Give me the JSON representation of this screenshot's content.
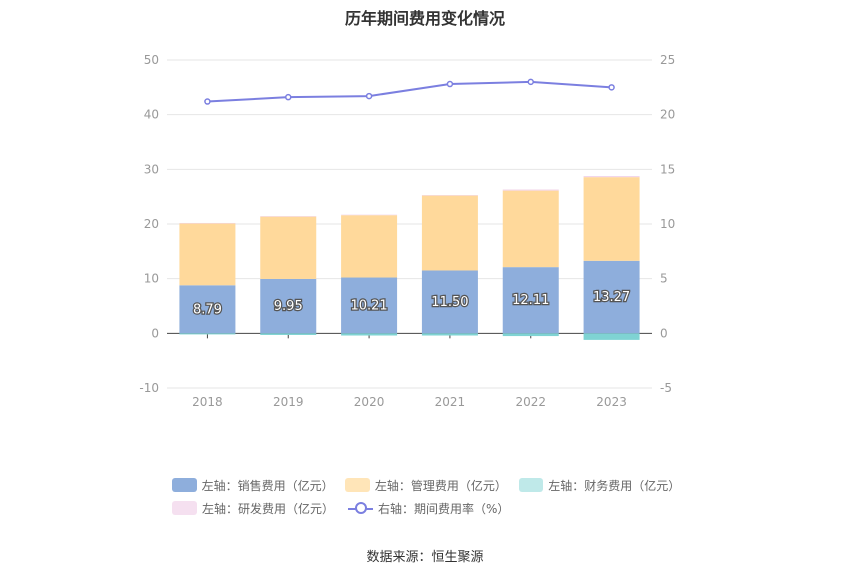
{
  "title": "历年期间费用变化情况",
  "source": "数据来源：恒生聚源",
  "chart_data": {
    "type": "bar",
    "stacked": true,
    "categories": [
      "2018",
      "2019",
      "2020",
      "2021",
      "2022",
      "2023"
    ],
    "left_axis": {
      "ylim": [
        -10,
        50
      ],
      "ticks": [
        -10,
        0,
        10,
        20,
        30,
        40,
        50
      ]
    },
    "right_axis": {
      "ylim": [
        -5,
        25
      ],
      "ticks": [
        -5,
        0,
        5,
        10,
        15,
        20,
        25
      ]
    },
    "series": [
      {
        "name": "左轴：销售费用（亿元）",
        "axis": "left",
        "kind": "bar",
        "color": "#8eaedc",
        "values": [
          8.79,
          9.95,
          10.21,
          11.5,
          12.11,
          13.27
        ],
        "labels": [
          "8.79",
          "9.95",
          "10.21",
          "11.50",
          "12.11",
          "13.27"
        ]
      },
      {
        "name": "左轴：管理费用（亿元）",
        "axis": "left",
        "kind": "bar",
        "color": "#ffd99b",
        "values": [
          11.3,
          11.4,
          11.4,
          13.7,
          14.0,
          15.3
        ]
      },
      {
        "name": "左轴：财务费用（亿元）",
        "axis": "left",
        "kind": "bar",
        "color": "#7fd3d3",
        "values": [
          -0.2,
          -0.3,
          -0.4,
          -0.4,
          -0.5,
          -1.2
        ]
      },
      {
        "name": "左轴：研发费用（亿元）",
        "axis": "left",
        "kind": "bar",
        "color": "#f2d4ea",
        "values": [
          0.1,
          0.1,
          0.1,
          0.1,
          0.2,
          0.2
        ]
      },
      {
        "name": "右轴：期间费用率（%）",
        "axis": "right",
        "kind": "line",
        "color": "#7b7fe0",
        "values": [
          21.2,
          21.6,
          21.7,
          22.8,
          23.0,
          22.5
        ]
      }
    ],
    "legend_position": "bottom",
    "grid": true
  }
}
